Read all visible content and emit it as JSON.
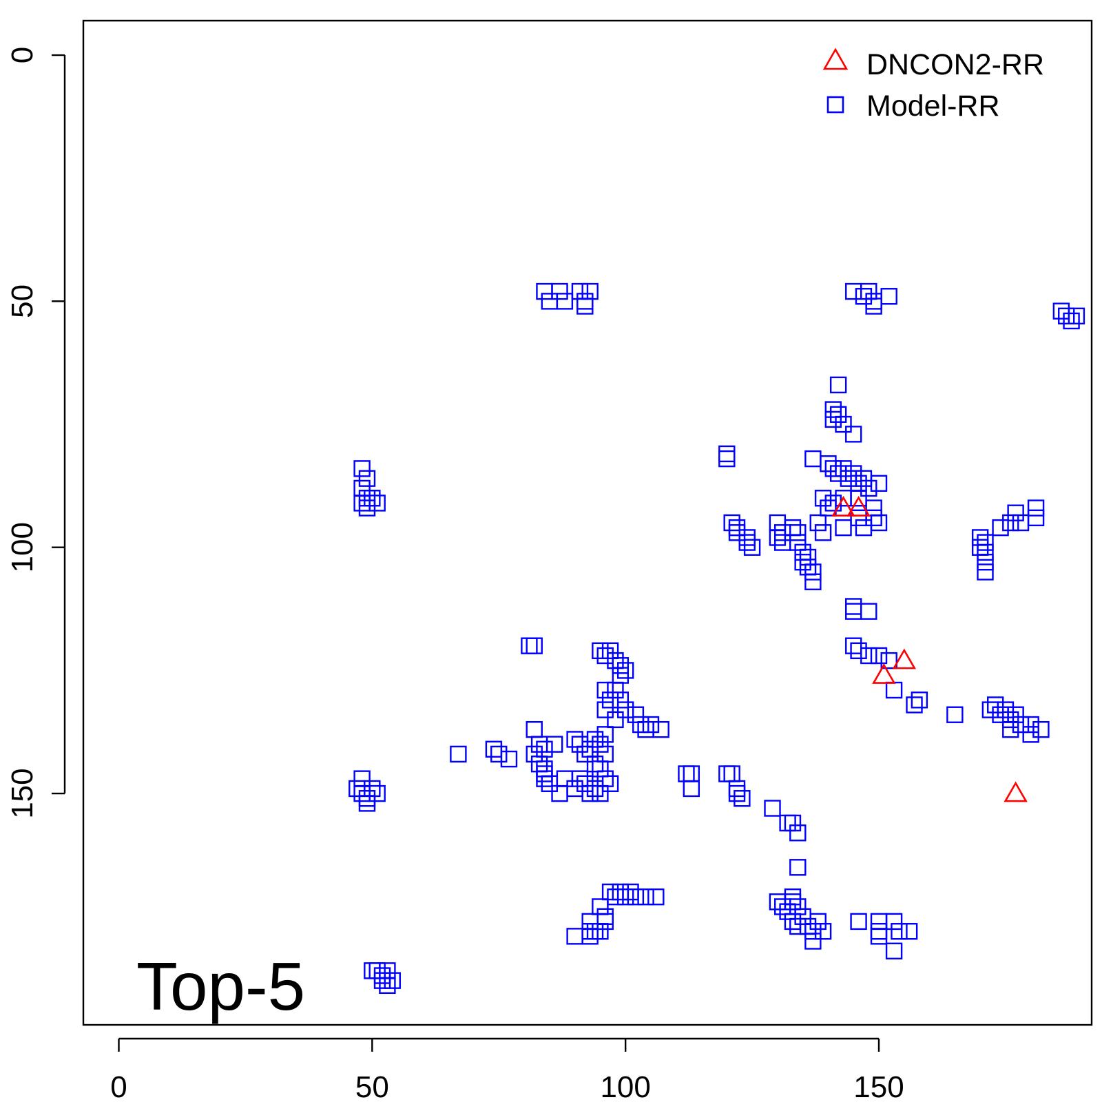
{
  "chart_data": {
    "type": "scatter",
    "title": "",
    "xlabel": "",
    "ylabel": "",
    "xlim": [
      -7,
      192
    ],
    "ylim": [
      -7,
      197
    ],
    "y_reversed": true,
    "x_ticks": [
      "0",
      "50",
      "100",
      "150"
    ],
    "y_ticks": [
      "0",
      "50",
      "100",
      "150"
    ],
    "annotation": "Top-5",
    "legend": {
      "position": "top-right",
      "entries": [
        {
          "label": "DNCON2-RR",
          "marker": "triangle",
          "color": "#ff0000"
        },
        {
          "label": "Model-RR",
          "marker": "square",
          "color": "#0000ff"
        }
      ]
    },
    "series": [
      {
        "name": "DNCON2-RR",
        "marker": "triangle",
        "color": "#ff0000",
        "points": [
          [
            143,
            92
          ],
          [
            146,
            92
          ],
          [
            151,
            126
          ],
          [
            155,
            123
          ],
          [
            177,
            150
          ]
        ]
      },
      {
        "name": "Model-RR",
        "marker": "square",
        "color": "#0000ff",
        "points": [
          [
            84,
            48
          ],
          [
            85,
            50
          ],
          [
            87,
            48
          ],
          [
            88,
            50
          ],
          [
            91,
            48
          ],
          [
            92,
            50
          ],
          [
            93,
            48
          ],
          [
            92,
            51
          ],
          [
            145,
            48
          ],
          [
            147,
            49
          ],
          [
            148,
            48
          ],
          [
            149,
            50
          ],
          [
            149,
            51
          ],
          [
            152,
            49
          ],
          [
            186,
            52
          ],
          [
            187,
            53
          ],
          [
            188,
            54
          ],
          [
            189,
            53
          ],
          [
            142,
            67
          ],
          [
            141,
            72
          ],
          [
            142,
            73
          ],
          [
            143,
            75
          ],
          [
            141,
            74
          ],
          [
            145,
            77
          ],
          [
            120,
            81
          ],
          [
            120,
            82
          ],
          [
            137,
            82
          ],
          [
            140,
            83
          ],
          [
            141,
            84
          ],
          [
            142,
            85
          ],
          [
            143,
            84
          ],
          [
            144,
            86
          ],
          [
            145,
            85
          ],
          [
            146,
            87
          ],
          [
            147,
            86
          ],
          [
            148,
            88
          ],
          [
            150,
            87
          ],
          [
            139,
            90
          ],
          [
            140,
            92
          ],
          [
            141,
            91
          ],
          [
            143,
            90
          ],
          [
            146,
            90
          ],
          [
            146,
            94
          ],
          [
            149,
            92
          ],
          [
            149,
            94
          ],
          [
            150,
            95
          ],
          [
            147,
            96
          ],
          [
            143,
            96
          ],
          [
            48,
            84
          ],
          [
            49,
            86
          ],
          [
            48,
            88
          ],
          [
            49,
            90
          ],
          [
            51,
            91
          ],
          [
            48,
            91
          ],
          [
            49,
            92
          ],
          [
            50,
            90
          ],
          [
            121,
            95
          ],
          [
            122,
            96
          ],
          [
            122,
            97
          ],
          [
            124,
            98
          ],
          [
            124,
            99
          ],
          [
            125,
            100
          ],
          [
            130,
            95
          ],
          [
            130,
            98
          ],
          [
            131,
            99
          ],
          [
            131,
            97
          ],
          [
            133,
            96
          ],
          [
            134,
            97
          ],
          [
            134,
            99
          ],
          [
            135,
            101
          ],
          [
            136,
            102
          ],
          [
            135,
            103
          ],
          [
            136,
            104
          ],
          [
            137,
            105
          ],
          [
            137,
            107
          ],
          [
            138,
            95
          ],
          [
            139,
            97
          ],
          [
            170,
            98
          ],
          [
            171,
            99
          ],
          [
            170,
            100
          ],
          [
            171,
            101
          ],
          [
            171,
            103
          ],
          [
            171,
            105
          ],
          [
            174,
            96
          ],
          [
            176,
            95
          ],
          [
            177,
            93
          ],
          [
            178,
            95
          ],
          [
            181,
            94
          ],
          [
            181,
            92
          ],
          [
            145,
            112
          ],
          [
            145,
            113
          ],
          [
            148,
            113
          ],
          [
            145,
            120
          ],
          [
            146,
            121
          ],
          [
            148,
            122
          ],
          [
            150,
            122
          ],
          [
            152,
            123
          ],
          [
            81,
            120
          ],
          [
            82,
            120
          ],
          [
            95,
            121
          ],
          [
            96,
            122
          ],
          [
            97,
            121
          ],
          [
            98,
            123
          ],
          [
            99,
            124
          ],
          [
            100,
            125
          ],
          [
            99,
            126
          ],
          [
            153,
            129
          ],
          [
            157,
            132
          ],
          [
            158,
            131
          ],
          [
            165,
            134
          ],
          [
            172,
            133
          ],
          [
            173,
            132
          ],
          [
            174,
            134
          ],
          [
            175,
            133
          ],
          [
            176,
            135
          ],
          [
            177,
            134
          ],
          [
            178,
            136
          ],
          [
            176,
            137
          ],
          [
            180,
            136
          ],
          [
            182,
            137
          ],
          [
            180,
            138
          ],
          [
            96,
            129
          ],
          [
            97,
            131
          ],
          [
            96,
            133
          ],
          [
            98,
            129
          ],
          [
            99,
            131
          ],
          [
            100,
            133
          ],
          [
            98,
            135
          ],
          [
            102,
            134
          ],
          [
            103,
            136
          ],
          [
            104,
            137
          ],
          [
            105,
            136
          ],
          [
            107,
            137
          ],
          [
            67,
            142
          ],
          [
            74,
            141
          ],
          [
            75,
            142
          ],
          [
            77,
            143
          ],
          [
            82,
            137
          ],
          [
            83,
            140
          ],
          [
            84,
            141
          ],
          [
            82,
            142
          ],
          [
            83,
            144
          ],
          [
            84,
            145
          ],
          [
            86,
            140
          ],
          [
            84,
            146
          ],
          [
            84,
            147
          ],
          [
            85,
            148
          ],
          [
            87,
            150
          ],
          [
            88,
            147
          ],
          [
            90,
            139
          ],
          [
            91,
            140
          ],
          [
            92,
            142
          ],
          [
            93,
            141
          ],
          [
            94,
            139
          ],
          [
            95,
            140
          ],
          [
            96,
            138
          ],
          [
            94,
            144
          ],
          [
            95,
            145
          ],
          [
            96,
            147
          ],
          [
            97,
            148
          ],
          [
            95,
            150
          ],
          [
            94,
            149
          ],
          [
            93,
            150
          ],
          [
            92,
            148
          ],
          [
            91,
            147
          ],
          [
            90,
            149
          ],
          [
            96,
            142
          ],
          [
            48,
            147
          ],
          [
            47,
            149
          ],
          [
            48,
            150
          ],
          [
            49,
            151
          ],
          [
            50,
            149
          ],
          [
            51,
            150
          ],
          [
            49,
            152
          ],
          [
            112,
            146
          ],
          [
            113,
            146
          ],
          [
            113,
            149
          ],
          [
            120,
            146
          ],
          [
            121,
            146
          ],
          [
            122,
            149
          ],
          [
            123,
            151
          ],
          [
            122,
            150
          ],
          [
            129,
            153
          ],
          [
            132,
            156
          ],
          [
            133,
            156
          ],
          [
            134,
            158
          ],
          [
            134,
            165
          ],
          [
            130,
            172
          ],
          [
            131,
            173
          ],
          [
            132,
            174
          ],
          [
            133,
            172
          ],
          [
            133,
            171
          ],
          [
            134,
            173
          ],
          [
            135,
            175
          ],
          [
            133,
            176
          ],
          [
            134,
            177
          ],
          [
            136,
            177
          ],
          [
            137,
            178
          ],
          [
            138,
            176
          ],
          [
            137,
            180
          ],
          [
            139,
            178
          ],
          [
            97,
            170
          ],
          [
            98,
            171
          ],
          [
            99,
            170
          ],
          [
            100,
            171
          ],
          [
            101,
            170
          ],
          [
            102,
            171
          ],
          [
            104,
            171
          ],
          [
            106,
            171
          ],
          [
            95,
            173
          ],
          [
            96,
            175
          ],
          [
            96,
            176
          ],
          [
            95,
            178
          ],
          [
            93,
            176
          ],
          [
            93,
            178
          ],
          [
            94,
            178
          ],
          [
            90,
            179
          ],
          [
            93,
            179
          ],
          [
            146,
            176
          ],
          [
            150,
            176
          ],
          [
            150,
            178
          ],
          [
            150,
            179
          ],
          [
            153,
            176
          ],
          [
            154,
            178
          ],
          [
            156,
            178
          ],
          [
            153,
            182
          ],
          [
            50,
            186
          ],
          [
            51,
            186
          ],
          [
            52,
            187
          ],
          [
            52,
            188
          ],
          [
            53,
            186
          ],
          [
            54,
            188
          ],
          [
            53,
            189
          ]
        ]
      }
    ]
  }
}
